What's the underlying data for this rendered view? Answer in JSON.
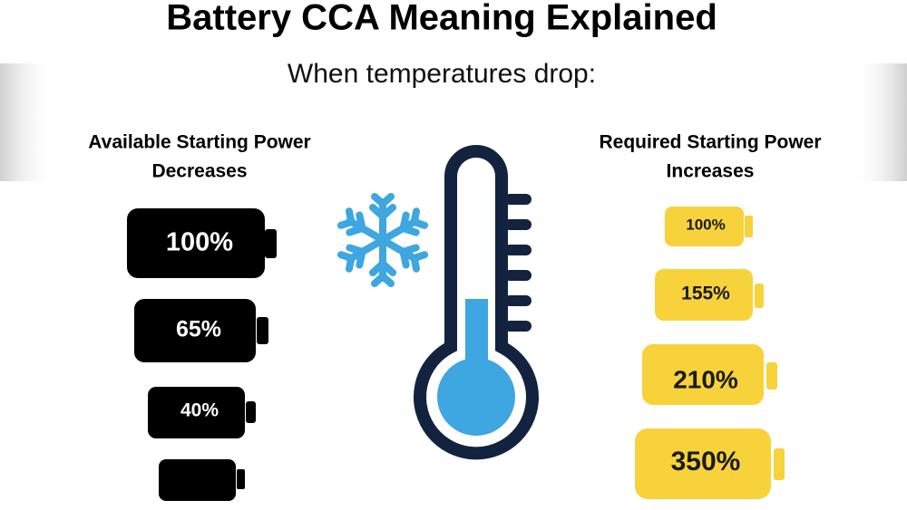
{
  "header": {
    "title": "Battery CCA Meaning Explained",
    "subtitle": "When temperatures drop:"
  },
  "left": {
    "heading": [
      "Available Starting Power",
      "Decreases"
    ],
    "batteries": [
      "100%",
      "65%",
      "40%"
    ]
  },
  "right": {
    "heading": [
      "Required Starting Power",
      "Increases"
    ],
    "batteries": [
      "100%",
      "155%",
      "210%",
      "350%"
    ]
  }
}
